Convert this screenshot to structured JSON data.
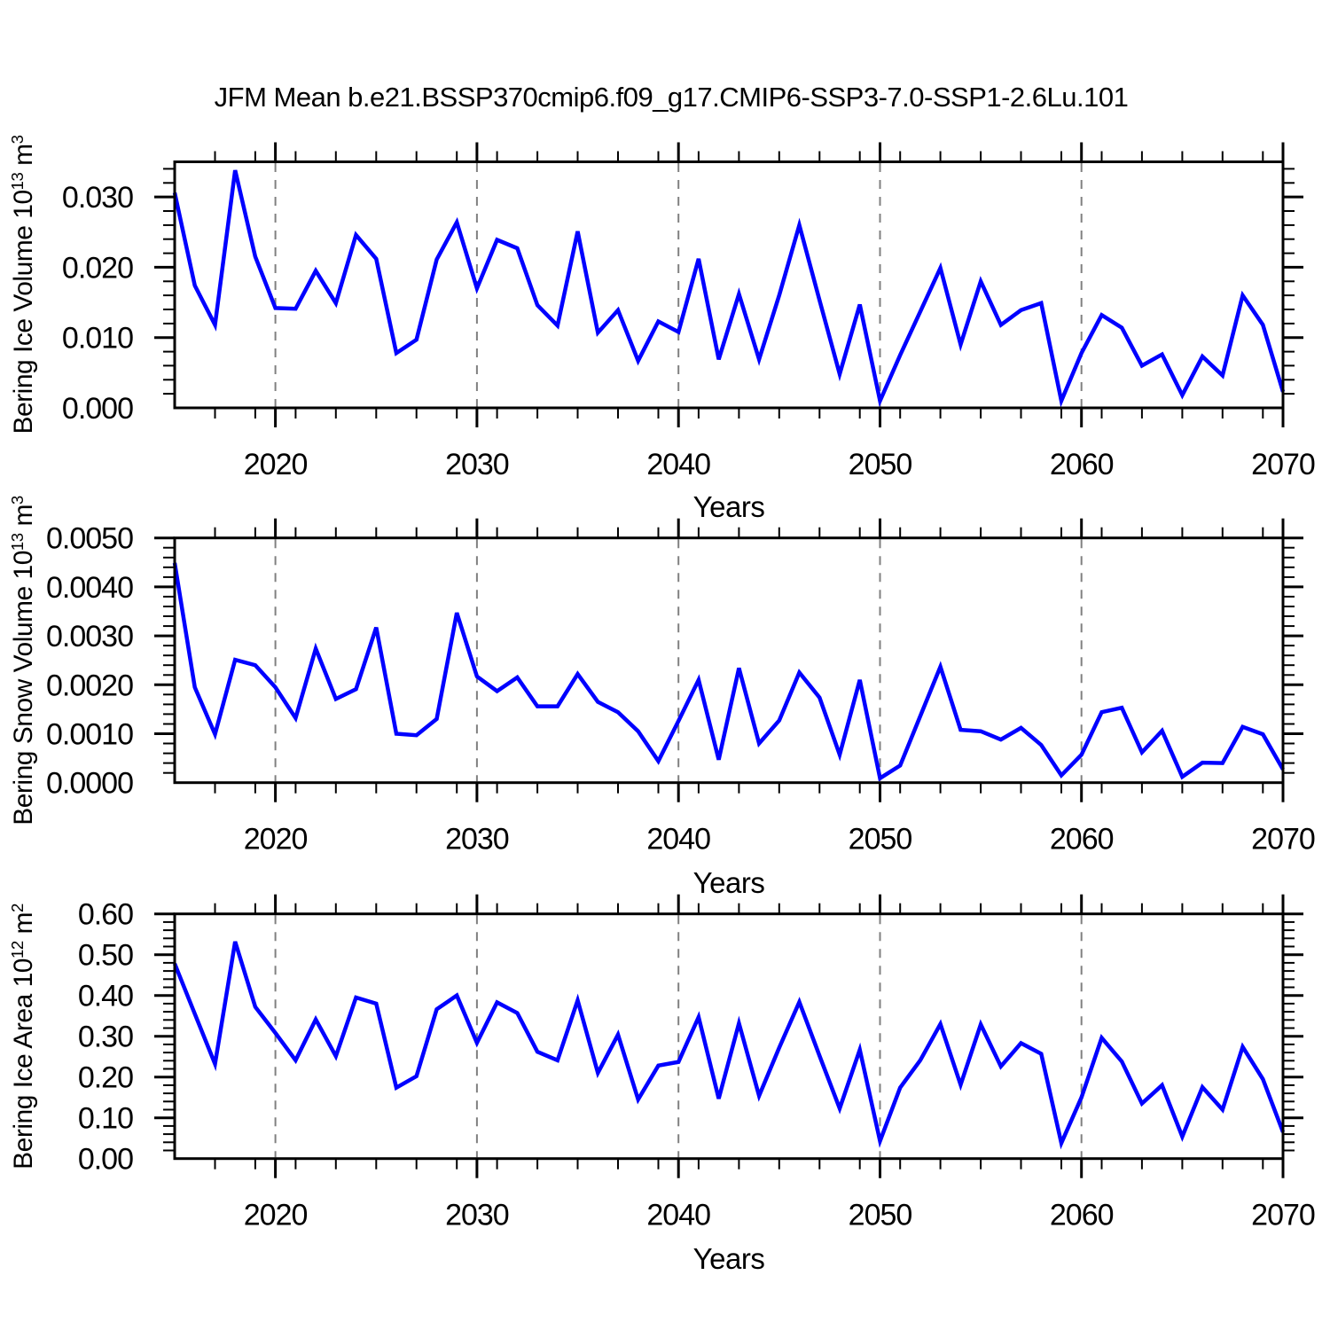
{
  "title": "JFM Mean b.e21.BSSP370cmip6.f09_g17.CMIP6-SSP3-7.0-SSP1-2.6Lu.101",
  "chart_data": {
    "type": "line",
    "x_axis_label": "Years",
    "line_color": "#0000ff",
    "grid_color": "#808080",
    "frame_color": "#000000",
    "x": [
      2015,
      2016,
      2017,
      2018,
      2019,
      2020,
      2021,
      2022,
      2023,
      2024,
      2025,
      2026,
      2027,
      2028,
      2029,
      2030,
      2031,
      2032,
      2033,
      2034,
      2035,
      2036,
      2037,
      2038,
      2039,
      2040,
      2041,
      2042,
      2043,
      2044,
      2045,
      2046,
      2047,
      2048,
      2049,
      2050,
      2051,
      2052,
      2053,
      2054,
      2055,
      2056,
      2057,
      2058,
      2059,
      2060,
      2061,
      2062,
      2063,
      2064,
      2065,
      2066,
      2067,
      2068,
      2069,
      2070
    ],
    "x_range": [
      2015,
      2070
    ],
    "x_major_ticks": [
      2020,
      2030,
      2040,
      2050,
      2060,
      2070
    ],
    "x_tick_labels": [
      "2020",
      "2030",
      "2040",
      "2050",
      "2060",
      "2070"
    ],
    "x_minor_step": 2,
    "grid_at_x_majors": true,
    "charts": [
      {
        "name": "bering-ice-volume",
        "ylabel_segments": [
          {
            "t": "Bering Ice Volume 10"
          },
          {
            "t": "13",
            "sup": true
          },
          {
            "t": " m"
          },
          {
            "t": "3",
            "sup": true
          }
        ],
        "xlabel": "Years",
        "ylim": [
          0,
          0.035
        ],
        "y_major_step": 0.01,
        "y_minor_step": 0.002,
        "y_tick_labels": [
          "0.000",
          "0.010",
          "0.020",
          "0.030"
        ],
        "values": [
          0.0306,
          0.0174,
          0.0118,
          0.0338,
          0.0215,
          0.0142,
          0.0141,
          0.0195,
          0.0149,
          0.0246,
          0.0212,
          0.0078,
          0.0097,
          0.0211,
          0.0264,
          0.017,
          0.0239,
          0.0227,
          0.0146,
          0.0117,
          0.0251,
          0.0107,
          0.0139,
          0.0067,
          0.0123,
          0.0108,
          0.0212,
          0.0069,
          0.0162,
          0.0069,
          0.016,
          0.026,
          0.0153,
          0.0048,
          0.0147,
          0.001,
          0.0075,
          0.0137,
          0.0199,
          0.009,
          0.018,
          0.0118,
          0.0139,
          0.0149,
          0.001,
          0.0078,
          0.0132,
          0.0114,
          0.006,
          0.0076,
          0.0018,
          0.0073,
          0.0046,
          0.016,
          0.0118,
          0.0023
        ]
      },
      {
        "name": "bering-snow-volume",
        "ylabel_segments": [
          {
            "t": "Bering Snow Volume 10"
          },
          {
            "t": "13",
            "sup": true
          },
          {
            "t": " m"
          },
          {
            "t": "3",
            "sup": true
          }
        ],
        "xlabel": "Years",
        "ylim": [
          0,
          0.005
        ],
        "y_major_step": 0.001,
        "y_minor_step": 0.0002,
        "y_tick_labels": [
          "0.0000",
          "0.0010",
          "0.0020",
          "0.0030",
          "0.0040",
          "0.0050"
        ],
        "values": [
          0.00449,
          0.00195,
          0.00099,
          0.00251,
          0.0024,
          0.00195,
          0.00132,
          0.00274,
          0.00171,
          0.00191,
          0.00317,
          0.001,
          0.00097,
          0.0013,
          0.00347,
          0.00217,
          0.00187,
          0.00215,
          0.00156,
          0.00156,
          0.00222,
          0.00165,
          0.00144,
          0.00105,
          0.00044,
          0.00126,
          0.0021,
          0.00047,
          0.00234,
          0.0008,
          0.00127,
          0.00225,
          0.00174,
          0.00057,
          0.0021,
          9e-05,
          0.00035,
          0.00136,
          0.00237,
          0.00108,
          0.00105,
          0.00088,
          0.00112,
          0.00077,
          0.00015,
          0.00057,
          0.00144,
          0.00153,
          0.00062,
          0.00106,
          0.00012,
          0.00041,
          0.0004,
          0.00114,
          0.00099,
          0.00027
        ]
      },
      {
        "name": "bering-ice-area",
        "ylabel_segments": [
          {
            "t": "Bering Ice Area 10"
          },
          {
            "t": "12",
            "sup": true
          },
          {
            "t": " m"
          },
          {
            "t": "2",
            "sup": true
          }
        ],
        "xlabel": "Years",
        "ylim": [
          0,
          0.6
        ],
        "y_major_step": 0.1,
        "y_minor_step": 0.02,
        "y_tick_labels": [
          "0.00",
          "0.10",
          "0.20",
          "0.30",
          "0.40",
          "0.50",
          "0.60"
        ],
        "values": [
          0.478,
          0.355,
          0.232,
          0.532,
          0.372,
          0.308,
          0.241,
          0.341,
          0.251,
          0.395,
          0.38,
          0.174,
          0.202,
          0.366,
          0.4,
          0.284,
          0.383,
          0.357,
          0.262,
          0.241,
          0.388,
          0.21,
          0.304,
          0.145,
          0.228,
          0.237,
          0.347,
          0.147,
          0.332,
          0.154,
          0.272,
          0.384,
          0.252,
          0.123,
          0.267,
          0.043,
          0.174,
          0.241,
          0.33,
          0.181,
          0.329,
          0.226,
          0.283,
          0.257,
          0.038,
          0.15,
          0.296,
          0.238,
          0.135,
          0.18,
          0.054,
          0.175,
          0.12,
          0.274,
          0.195,
          0.065
        ]
      }
    ]
  }
}
